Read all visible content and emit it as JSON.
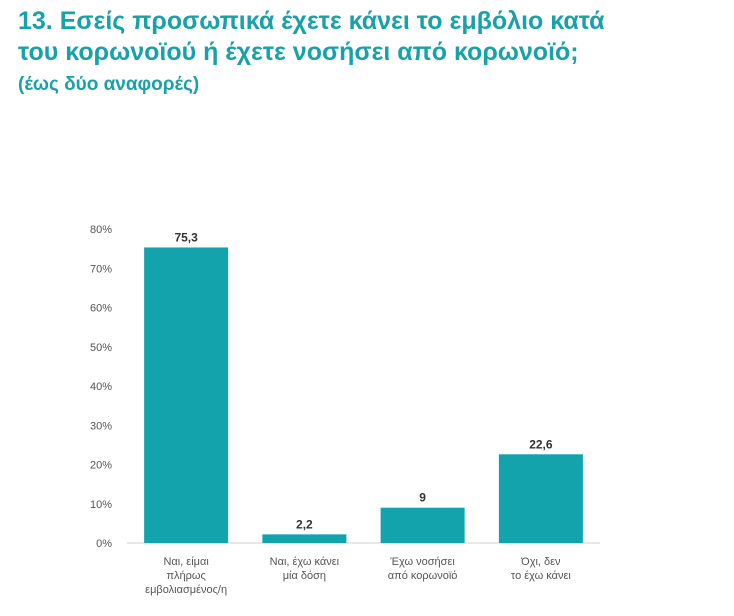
{
  "header": {
    "title_line1": "13. Εσείς προσωπικά έχετε κάνει το εμβόλιο κατά",
    "title_line2": "του κορωνοϊού ή έχετε νοσήσει από κορωνοϊό;",
    "subtitle": "(έως δύο αναφορές)"
  },
  "chart_data": {
    "type": "bar",
    "categories": [
      [
        "Ναι, είμαι",
        "πλήρως",
        "εμβολιασμένος/η"
      ],
      [
        "Ναι,  έχω κάνει",
        "μία δόση"
      ],
      [
        "Έχω νοσήσει",
        "από κορωνοϊό"
      ],
      [
        "Όχι, δεν",
        "το έχω κάνει"
      ]
    ],
    "values": [
      75.3,
      2.2,
      9,
      22.6
    ],
    "value_labels": [
      "75,3",
      "2,2",
      "9",
      "22,6"
    ],
    "y_ticks": [
      "0%",
      "10%",
      "20%",
      "30%",
      "40%",
      "50%",
      "60%",
      "70%",
      "80%"
    ],
    "ylim": [
      0,
      80
    ],
    "bar_color": "#12a3ad",
    "grid": false
  }
}
